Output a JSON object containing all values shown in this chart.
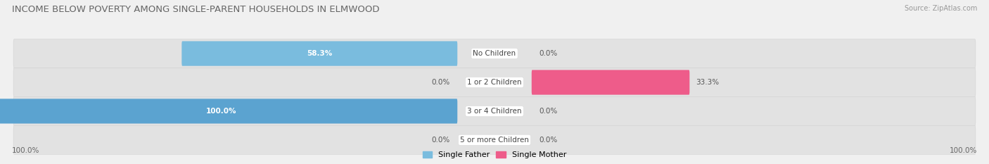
{
  "title": "INCOME BELOW POVERTY AMONG SINGLE-PARENT HOUSEHOLDS IN ELMWOOD",
  "source": "Source: ZipAtlas.com",
  "categories": [
    "No Children",
    "1 or 2 Children",
    "3 or 4 Children",
    "5 or more Children"
  ],
  "single_father": [
    58.3,
    0.0,
    100.0,
    0.0
  ],
  "single_mother": [
    0.0,
    33.3,
    0.0,
    0.0
  ],
  "father_color": "#7abcde",
  "father_color_dark": "#5ba3d0",
  "mother_color_light": "#f9b8cc",
  "mother_color_dark": "#ee5c8a",
  "bg_color": "#f0f0f0",
  "row_bg_color": "#e2e2e2",
  "title_fontsize": 9.5,
  "source_fontsize": 7,
  "label_fontsize": 7.5,
  "category_fontsize": 7.5,
  "legend_fontsize": 8,
  "axis_label_fontsize": 7.5,
  "xlim": 100.0,
  "left_axis_label": "100.0%",
  "right_axis_label": "100.0%"
}
